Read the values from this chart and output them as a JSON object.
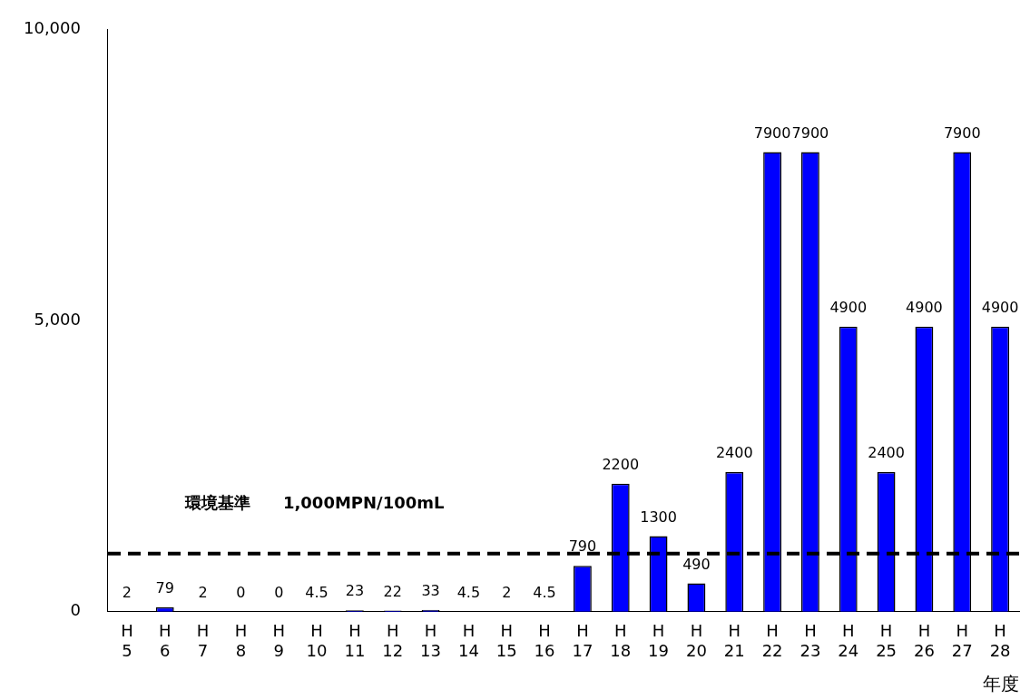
{
  "chart_data": {
    "type": "bar",
    "xlabel": "年度",
    "categories": [
      "H\n5",
      "H\n6",
      "H\n7",
      "H\n8",
      "H\n9",
      "H\n10",
      "H\n11",
      "H\n12",
      "H\n13",
      "H\n14",
      "H\n15",
      "H\n16",
      "H\n17",
      "H\n18",
      "H\n19",
      "H\n20",
      "H\n21",
      "H\n22",
      "H\n23",
      "H\n24",
      "H\n25",
      "H\n26",
      "H\n27",
      "H\n28"
    ],
    "values": [
      2,
      79,
      2,
      0,
      0,
      4.5,
      23,
      22,
      33,
      4.5,
      2,
      4.5,
      790,
      2200,
      1300,
      490,
      2400,
      7900,
      7900,
      4900,
      2400,
      4900,
      7900,
      4900
    ],
    "color": "#0000ff",
    "ylim": [
      0,
      10000
    ],
    "yticks": [
      0,
      {
        "value": 5000,
        "label": "5,000"
      },
      {
        "value": 10000,
        "label": "10,000"
      }
    ],
    "grid": false,
    "legend": false,
    "data_labels": true,
    "ref_lines": [
      {
        "axis": "y",
        "value": 1000,
        "label": "環境基準　　1,000MPN/100mL",
        "color": "#000000",
        "line_style": "dashed"
      }
    ]
  }
}
